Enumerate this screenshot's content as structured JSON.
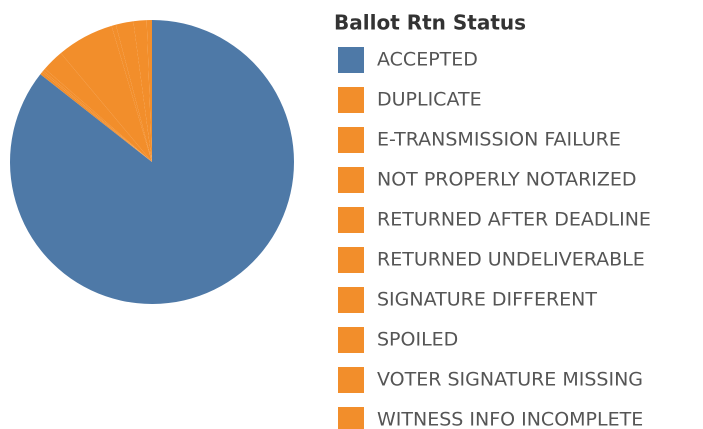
{
  "chart_data": {
    "type": "pie",
    "legend_title": "Ballot Rtn Status",
    "categories": [
      "ACCEPTED",
      "DUPLICATE",
      "E-TRANSMISSION FAILURE",
      "NOT PROPERLY NOTARIZED",
      "RETURNED AFTER DEADLINE",
      "RETURNED UNDELIVERABLE",
      "SIGNATURE DIFFERENT",
      "SPOILED",
      "VOTER SIGNATURE MISSING",
      "WITNESS INFO INCOMPLETE"
    ],
    "values": [
      85.6,
      0.3,
      0.2,
      0.3,
      2.5,
      6.5,
      0.5,
      2.0,
      1.5,
      0.6
    ],
    "colors": [
      "#4e79a7",
      "#f28e2b",
      "#f28e2b",
      "#f28e2b",
      "#f28e2b",
      "#f28e2b",
      "#f28e2b",
      "#f28e2b",
      "#f28e2b",
      "#f28e2b"
    ],
    "legend": "right"
  }
}
